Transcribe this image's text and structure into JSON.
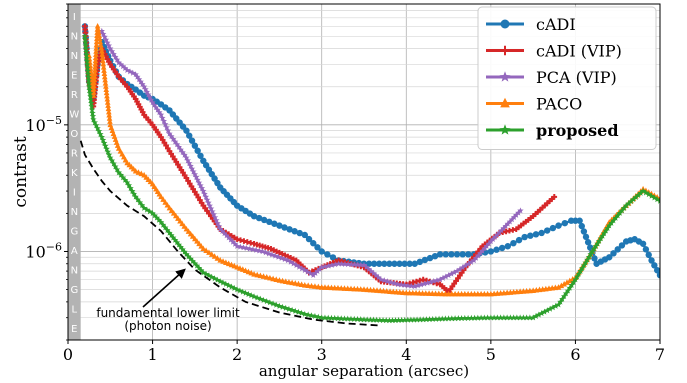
{
  "chart_data": {
    "type": "line",
    "xlabel": "angular separation (arcsec)",
    "ylabel": "contrast",
    "xlim": [
      0,
      7
    ],
    "ylim": [
      2e-07,
      9e-05
    ],
    "yscale": "log",
    "x_ticks": [
      {
        "value": 0,
        "label": "0"
      },
      {
        "value": 1,
        "label": "1"
      },
      {
        "value": 2,
        "label": "2"
      },
      {
        "value": 3,
        "label": "3"
      },
      {
        "value": 4,
        "label": "4"
      },
      {
        "value": 5,
        "label": "5"
      },
      {
        "value": 6,
        "label": "6"
      },
      {
        "value": 7,
        "label": "7"
      }
    ],
    "y_ticks": [
      {
        "value": 1e-05,
        "base": "10",
        "exp": "−5"
      },
      {
        "value": 1e-06,
        "base": "10",
        "exp": "−6"
      }
    ],
    "grid": true,
    "legend_position": "top-right",
    "inner_working_angle": {
      "x_from": 0,
      "x_to": 0.15,
      "label": "INNER WORKING ANGLE"
    },
    "annotation": {
      "lines": [
        "fundamental lower limit",
        "(photon noise)"
      ],
      "arrow_to": [
        1.4,
        7.7e-07
      ]
    },
    "series": [
      {
        "name": "cADI",
        "bold": false,
        "color": "#1f77b4",
        "marker": "circle",
        "points": [
          [
            0.2,
            6e-05
          ],
          [
            0.25,
            2.2e-05
          ],
          [
            0.3,
            1.6e-05
          ],
          [
            0.35,
            3e-05
          ],
          [
            0.4,
            4.5e-05
          ],
          [
            0.5,
            3.2e-05
          ],
          [
            0.6,
            2.4e-05
          ],
          [
            0.7,
            2.1e-05
          ],
          [
            0.8,
            1.9e-05
          ],
          [
            0.9,
            1.7e-05
          ],
          [
            1.0,
            1.6e-05
          ],
          [
            1.1,
            1.45e-05
          ],
          [
            1.2,
            1.3e-05
          ],
          [
            1.4,
            9e-06
          ],
          [
            1.6,
            5.2e-06
          ],
          [
            1.8,
            3.2e-06
          ],
          [
            2.0,
            2.3e-06
          ],
          [
            2.2,
            1.9e-06
          ],
          [
            2.5,
            1.6e-06
          ],
          [
            2.8,
            1.35e-06
          ],
          [
            3.0,
            1e-06
          ],
          [
            3.2,
            8.5e-07
          ],
          [
            3.5,
            8e-07
          ],
          [
            3.8,
            8e-07
          ],
          [
            4.1,
            8e-07
          ],
          [
            4.4,
            9.5e-07
          ],
          [
            4.8,
            9.5e-07
          ],
          [
            5.0,
            1e-06
          ],
          [
            5.2,
            1.1e-06
          ],
          [
            5.4,
            1.3e-06
          ],
          [
            5.6,
            1.4e-06
          ],
          [
            5.8,
            1.6e-06
          ],
          [
            5.95,
            1.75e-06
          ],
          [
            6.05,
            1.75e-06
          ],
          [
            6.25,
            8e-07
          ],
          [
            6.4,
            9e-07
          ],
          [
            6.6,
            1.2e-06
          ],
          [
            6.7,
            1.25e-06
          ],
          [
            6.8,
            1.15e-06
          ],
          [
            6.9,
            8.5e-07
          ],
          [
            7.0,
            6.5e-07
          ]
        ]
      },
      {
        "name": "cADI (VIP)",
        "bold": false,
        "color": "#d62728",
        "marker": "plus",
        "points": [
          [
            0.2,
            6e-05
          ],
          [
            0.25,
            2.2e-05
          ],
          [
            0.3,
            1.4e-05
          ],
          [
            0.35,
            3e-05
          ],
          [
            0.4,
            4e-05
          ],
          [
            0.5,
            3e-05
          ],
          [
            0.6,
            2.4e-05
          ],
          [
            0.7,
            2e-05
          ],
          [
            0.8,
            1.6e-05
          ],
          [
            0.9,
            1.2e-05
          ],
          [
            1.0,
            1e-05
          ],
          [
            1.1,
            8e-06
          ],
          [
            1.2,
            6.2e-06
          ],
          [
            1.4,
            3.8e-06
          ],
          [
            1.6,
            2.3e-06
          ],
          [
            1.8,
            1.5e-06
          ],
          [
            2.0,
            1.25e-06
          ],
          [
            2.2,
            1.15e-06
          ],
          [
            2.4,
            1.05e-06
          ],
          [
            2.7,
            8.5e-07
          ],
          [
            2.85,
            6.8e-07
          ],
          [
            3.0,
            7.5e-07
          ],
          [
            3.2,
            8.5e-07
          ],
          [
            3.5,
            7.5e-07
          ],
          [
            3.7,
            5.8e-07
          ],
          [
            4.0,
            5.5e-07
          ],
          [
            4.2,
            6e-07
          ],
          [
            4.4,
            5.5e-07
          ],
          [
            4.5,
            4.8e-07
          ],
          [
            4.7,
            7.5e-07
          ],
          [
            4.9,
            1.1e-06
          ],
          [
            5.1,
            1.4e-06
          ],
          [
            5.3,
            1.5e-06
          ],
          [
            5.5,
            1.9e-06
          ],
          [
            5.75,
            2.7e-06
          ]
        ]
      },
      {
        "name": "PCA (VIP)",
        "bold": false,
        "color": "#9467bd",
        "marker": "star",
        "points": [
          [
            0.4,
            5.5e-05
          ],
          [
            0.5,
            4e-05
          ],
          [
            0.6,
            3.1e-05
          ],
          [
            0.7,
            2.7e-05
          ],
          [
            0.8,
            2.5e-05
          ],
          [
            0.9,
            2e-05
          ],
          [
            1.0,
            1.5e-05
          ],
          [
            1.1,
            1.2e-05
          ],
          [
            1.2,
            8.5e-06
          ],
          [
            1.4,
            5.5e-06
          ],
          [
            1.6,
            3e-06
          ],
          [
            1.8,
            1.5e-06
          ],
          [
            2.0,
            1.1e-06
          ],
          [
            2.3,
            1e-06
          ],
          [
            2.6,
            8.5e-07
          ],
          [
            2.9,
            6.5e-07
          ],
          [
            3.0,
            7.5e-07
          ],
          [
            3.2,
            8e-07
          ],
          [
            3.5,
            7.8e-07
          ],
          [
            3.7,
            6e-07
          ],
          [
            3.9,
            5.5e-07
          ],
          [
            4.1,
            5.3e-07
          ],
          [
            4.4,
            6e-07
          ],
          [
            4.6,
            7e-07
          ],
          [
            4.8,
            8.5e-07
          ],
          [
            5.0,
            1.2e-06
          ],
          [
            5.2,
            1.65e-06
          ],
          [
            5.35,
            2.1e-06
          ]
        ]
      },
      {
        "name": "PACO",
        "bold": false,
        "color": "#ff7f0e",
        "marker": "triangle",
        "points": [
          [
            0.25,
            3.5e-05
          ],
          [
            0.3,
            1.7e-05
          ],
          [
            0.35,
            6e-05
          ],
          [
            0.4,
            3.8e-05
          ],
          [
            0.5,
            1e-05
          ],
          [
            0.6,
            6.5e-06
          ],
          [
            0.7,
            5e-06
          ],
          [
            0.8,
            4.3e-06
          ],
          [
            0.9,
            4e-06
          ],
          [
            1.0,
            3.4e-06
          ],
          [
            1.1,
            2.7e-06
          ],
          [
            1.2,
            2.2e-06
          ],
          [
            1.4,
            1.5e-06
          ],
          [
            1.6,
            1.05e-06
          ],
          [
            1.8,
            8.5e-07
          ],
          [
            2.0,
            7.5e-07
          ],
          [
            2.2,
            6.6e-07
          ],
          [
            2.5,
            5.9e-07
          ],
          [
            2.8,
            5.4e-07
          ],
          [
            3.0,
            5.2e-07
          ],
          [
            3.5,
            5e-07
          ],
          [
            4.0,
            4.7e-07
          ],
          [
            4.5,
            4.6e-07
          ],
          [
            5.0,
            4.6e-07
          ],
          [
            5.5,
            4.9e-07
          ],
          [
            5.8,
            5.2e-07
          ],
          [
            6.0,
            6.2e-07
          ],
          [
            6.2,
            1e-06
          ],
          [
            6.4,
            1.7e-06
          ],
          [
            6.6,
            2.3e-06
          ],
          [
            6.8,
            3.1e-06
          ],
          [
            7.0,
            2.6e-06
          ]
        ]
      },
      {
        "name": "proposed",
        "bold": true,
        "color": "#2ca02c",
        "marker": "star",
        "points": [
          [
            0.2,
            5e-05
          ],
          [
            0.25,
            2e-05
          ],
          [
            0.3,
            1.1e-05
          ],
          [
            0.4,
            8e-06
          ],
          [
            0.5,
            5.5e-06
          ],
          [
            0.6,
            4.2e-06
          ],
          [
            0.7,
            3.5e-06
          ],
          [
            0.8,
            2.7e-06
          ],
          [
            0.9,
            2.2e-06
          ],
          [
            1.0,
            2e-06
          ],
          [
            1.1,
            1.7e-06
          ],
          [
            1.2,
            1.4e-06
          ],
          [
            1.4,
            9.5e-07
          ],
          [
            1.6,
            6.8e-07
          ],
          [
            1.8,
            5.8e-07
          ],
          [
            2.0,
            5e-07
          ],
          [
            2.2,
            4.4e-07
          ],
          [
            2.5,
            3.7e-07
          ],
          [
            2.8,
            3.2e-07
          ],
          [
            3.0,
            3e-07
          ],
          [
            3.5,
            2.9e-07
          ],
          [
            3.8,
            2.85e-07
          ],
          [
            4.2,
            2.9e-07
          ],
          [
            4.5,
            2.95e-07
          ],
          [
            5.0,
            3e-07
          ],
          [
            5.5,
            3e-07
          ],
          [
            5.8,
            3.8e-07
          ],
          [
            6.0,
            6e-07
          ],
          [
            6.2,
            1e-06
          ],
          [
            6.4,
            1.6e-06
          ],
          [
            6.6,
            2.3e-06
          ],
          [
            6.8,
            3e-06
          ],
          [
            7.0,
            2.5e-06
          ]
        ]
      },
      {
        "name": "",
        "legend": false,
        "color": "#000000",
        "dashed": true,
        "marker": "none",
        "points": [
          [
            0.15,
            7.5e-06
          ],
          [
            0.2,
            5.8e-06
          ],
          [
            0.3,
            4.5e-06
          ],
          [
            0.4,
            3.6e-06
          ],
          [
            0.5,
            3e-06
          ],
          [
            0.7,
            2.3e-06
          ],
          [
            0.9,
            1.9e-06
          ],
          [
            1.1,
            1.45e-06
          ],
          [
            1.3,
            1e-06
          ],
          [
            1.5,
            7.2e-07
          ],
          [
            1.8,
            5.2e-07
          ],
          [
            2.1,
            4e-07
          ],
          [
            2.5,
            3.3e-07
          ],
          [
            2.9,
            2.9e-07
          ],
          [
            3.3,
            2.7e-07
          ],
          [
            3.7,
            2.6e-07
          ]
        ]
      }
    ]
  }
}
